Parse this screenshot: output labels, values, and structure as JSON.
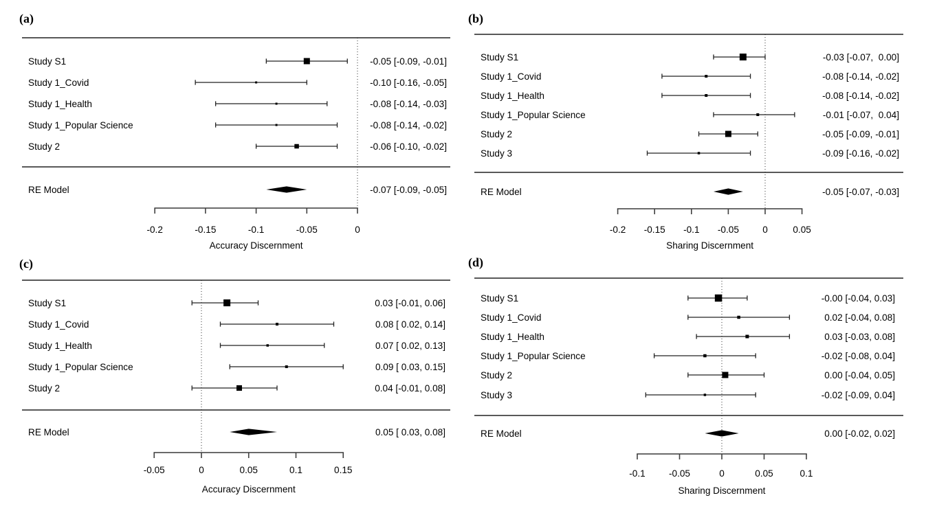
{
  "figure": {
    "background": "#ffffff",
    "ink_color": "#000000"
  },
  "chart_data": [
    {
      "id": "a",
      "letter": "(a)",
      "type": "forest",
      "xlabel": "Accuracy Discernment",
      "xlim": [
        -0.2,
        0
      ],
      "zero_line": 0,
      "xticks": [
        -0.2,
        -0.15,
        -0.1,
        -0.05,
        0
      ],
      "xtick_labels": [
        "-0.2",
        "-0.15",
        "-0.1",
        "-0.05",
        "0"
      ],
      "studies": [
        {
          "name": "Study S1",
          "estimate": -0.05,
          "ci_lower": -0.09,
          "ci_upper": -0.01,
          "label": "-0.05 [-0.09, -0.01]",
          "marker_size": 9
        },
        {
          "name": "Study 1_Covid",
          "estimate": -0.1,
          "ci_lower": -0.16,
          "ci_upper": -0.05,
          "label": "-0.10 [-0.16, -0.05]",
          "marker_size": 3
        },
        {
          "name": "Study 1_Health",
          "estimate": -0.08,
          "ci_lower": -0.14,
          "ci_upper": -0.03,
          "label": "-0.08 [-0.14, -0.03]",
          "marker_size": 3
        },
        {
          "name": "Study 1_Popular Science",
          "estimate": -0.08,
          "ci_lower": -0.14,
          "ci_upper": -0.02,
          "label": "-0.08 [-0.14, -0.02]",
          "marker_size": 3
        },
        {
          "name": "Study 2",
          "estimate": -0.06,
          "ci_lower": -0.1,
          "ci_upper": -0.02,
          "label": "-0.06 [-0.10, -0.02]",
          "marker_size": 6.5
        }
      ],
      "re_model": {
        "name": "RE Model",
        "estimate": -0.07,
        "ci_lower": -0.09,
        "ci_upper": -0.05,
        "label": "-0.07 [-0.09, -0.05]"
      }
    },
    {
      "id": "b",
      "letter": "(b)",
      "type": "forest",
      "xlabel": "Sharing Discernment",
      "xlim": [
        -0.2,
        0.05
      ],
      "zero_line": 0,
      "xticks": [
        -0.2,
        -0.15,
        -0.1,
        -0.05,
        0,
        0.05
      ],
      "xtick_labels": [
        "-0.2",
        "-0.15",
        "-0.1",
        "-0.05",
        "0",
        "0.05"
      ],
      "studies": [
        {
          "name": "Study S1",
          "estimate": -0.03,
          "ci_lower": -0.07,
          "ci_upper": 0.0,
          "label": "-0.03 [-0.07,  0.00]",
          "marker_size": 10
        },
        {
          "name": "Study 1_Covid",
          "estimate": -0.08,
          "ci_lower": -0.14,
          "ci_upper": -0.02,
          "label": "-0.08 [-0.14, -0.02]",
          "marker_size": 4
        },
        {
          "name": "Study 1_Health",
          "estimate": -0.08,
          "ci_lower": -0.14,
          "ci_upper": -0.02,
          "label": "-0.08 [-0.14, -0.02]",
          "marker_size": 4
        },
        {
          "name": "Study 1_Popular Science",
          "estimate": -0.01,
          "ci_lower": -0.07,
          "ci_upper": 0.04,
          "label": "-0.01 [-0.07,  0.04]",
          "marker_size": 4
        },
        {
          "name": "Study 2",
          "estimate": -0.05,
          "ci_lower": -0.09,
          "ci_upper": -0.01,
          "label": "-0.05 [-0.09, -0.01]",
          "marker_size": 9
        },
        {
          "name": "Study 3",
          "estimate": -0.09,
          "ci_lower": -0.16,
          "ci_upper": -0.02,
          "label": "-0.09 [-0.16, -0.02]",
          "marker_size": 3.5
        }
      ],
      "re_model": {
        "name": "RE Model",
        "estimate": -0.05,
        "ci_lower": -0.07,
        "ci_upper": -0.03,
        "label": "-0.05 [-0.07, -0.03]"
      }
    },
    {
      "id": "c",
      "letter": "(c)",
      "type": "forest",
      "xlabel": "Accuracy Discernment",
      "xlim": [
        -0.05,
        0.15
      ],
      "zero_line": 0,
      "xticks": [
        -0.05,
        0,
        0.05,
        0.1,
        0.15
      ],
      "xtick_labels": [
        "-0.05",
        "0",
        "0.05",
        "0.1",
        "0.15"
      ],
      "studies": [
        {
          "name": "Study S1",
          "estimate": 0.03,
          "plot_estimate": 0.027,
          "ci_lower": -0.01,
          "ci_upper": 0.06,
          "label": "0.03 [-0.01, 0.06]",
          "marker_size": 10
        },
        {
          "name": "Study 1_Covid",
          "estimate": 0.08,
          "ci_lower": 0.02,
          "ci_upper": 0.14,
          "label": "0.08 [ 0.02, 0.14]",
          "marker_size": 4
        },
        {
          "name": "Study 1_Health",
          "estimate": 0.07,
          "ci_lower": 0.02,
          "ci_upper": 0.13,
          "label": "0.07 [ 0.02, 0.13]",
          "marker_size": 3.5
        },
        {
          "name": "Study 1_Popular Science",
          "estimate": 0.09,
          "ci_lower": 0.03,
          "ci_upper": 0.15,
          "label": "0.09 [ 0.03, 0.15]",
          "marker_size": 4
        },
        {
          "name": "Study 2",
          "estimate": 0.04,
          "ci_lower": -0.01,
          "ci_upper": 0.08,
          "label": "0.04 [-0.01, 0.08]",
          "marker_size": 8
        }
      ],
      "re_model": {
        "name": "RE Model",
        "estimate": 0.05,
        "ci_lower": 0.03,
        "ci_upper": 0.08,
        "label": "0.05 [ 0.03, 0.08]"
      }
    },
    {
      "id": "d",
      "letter": "(d)",
      "type": "forest",
      "xlabel": "Sharing Discernment",
      "xlim": [
        -0.1,
        0.1
      ],
      "zero_line": 0,
      "xticks": [
        -0.1,
        -0.05,
        0,
        0.05,
        0.1
      ],
      "xtick_labels": [
        "-0.1",
        "-0.05",
        "0",
        "0.05",
        "0.1"
      ],
      "studies": [
        {
          "name": "Study S1",
          "estimate": -0.0,
          "plot_estimate": -0.004,
          "ci_lower": -0.04,
          "ci_upper": 0.03,
          "label": "-0.00 [-0.04, 0.03]",
          "marker_size": 10.5
        },
        {
          "name": "Study 1_Covid",
          "estimate": 0.02,
          "ci_lower": -0.04,
          "ci_upper": 0.08,
          "label": "0.02 [-0.04, 0.08]",
          "marker_size": 4.5
        },
        {
          "name": "Study 1_Health",
          "estimate": 0.03,
          "ci_lower": -0.03,
          "ci_upper": 0.08,
          "label": "0.03 [-0.03, 0.08]",
          "marker_size": 5
        },
        {
          "name": "Study 1_Popular Science",
          "estimate": -0.02,
          "ci_lower": -0.08,
          "ci_upper": 0.04,
          "label": "-0.02 [-0.08, 0.04]",
          "marker_size": 4.5
        },
        {
          "name": "Study 2",
          "estimate": 0.0,
          "plot_estimate": 0.004,
          "ci_lower": -0.04,
          "ci_upper": 0.05,
          "label": "0.00 [-0.04, 0.05]",
          "marker_size": 9
        },
        {
          "name": "Study 3",
          "estimate": -0.02,
          "ci_lower": -0.09,
          "ci_upper": 0.04,
          "label": "-0.02 [-0.09, 0.04]",
          "marker_size": 3.5
        }
      ],
      "re_model": {
        "name": "RE Model",
        "estimate": 0.0,
        "ci_lower": -0.02,
        "ci_upper": 0.02,
        "label": "0.00 [-0.02, 0.02]"
      }
    }
  ]
}
